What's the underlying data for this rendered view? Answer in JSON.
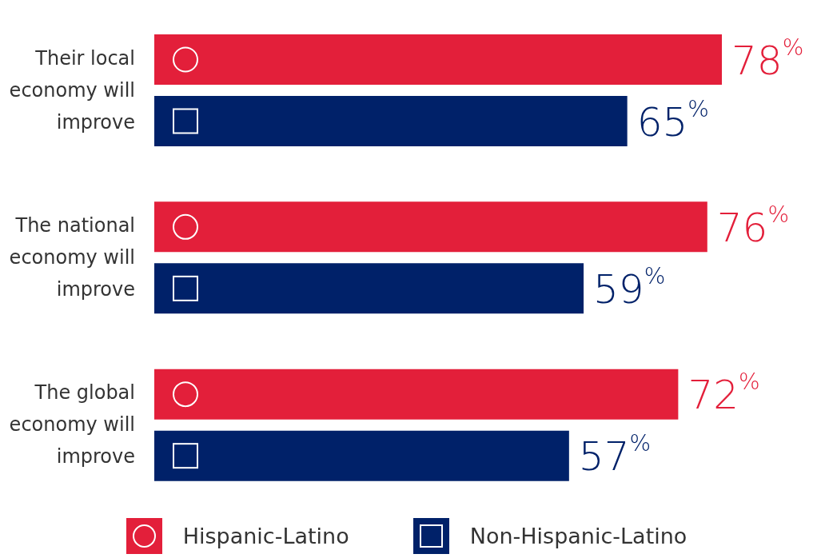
{
  "chart_data": {
    "type": "bar",
    "orientation": "horizontal",
    "categories": [
      "Their local economy will improve",
      "The national economy will improve",
      "The global economy will improve"
    ],
    "series": [
      {
        "name": "Hispanic-Latino",
        "color": "#e31f3a",
        "marker": "circle",
        "values": [
          78,
          76,
          72
        ],
        "value_labels": [
          "78$^{%}$",
          "76$^{%}$",
          "72$^{%}$"
        ]
      },
      {
        "name": "Non-Hispanic-Latino",
        "color": "#002169",
        "marker": "square",
        "values": [
          65,
          59,
          57
        ],
        "value_labels": [
          "65$^{%}$",
          "59$^{%}$",
          "57$^{%}$"
        ]
      }
    ],
    "legend": "bottom"
  }
}
